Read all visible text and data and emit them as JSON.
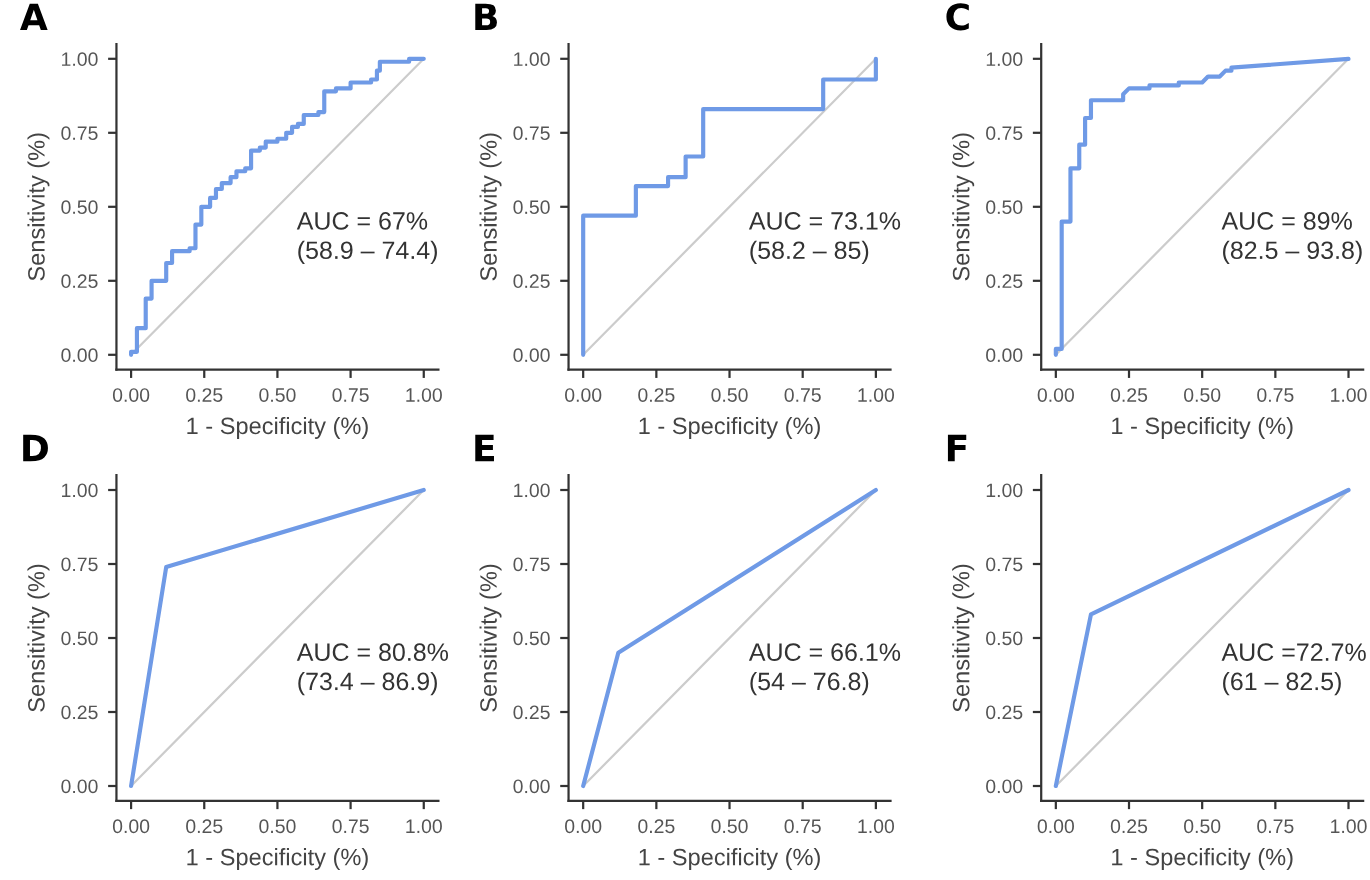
{
  "chart_data": [
    {
      "type": "line",
      "title": "A",
      "xlabel": "1 - Specificity (%)",
      "ylabel": "Sensitivity (%)",
      "xlim": [
        -0.05,
        1.05
      ],
      "ylim": [
        -0.05,
        1.05
      ],
      "xticks": [
        {
          "value": 0,
          "label": "0.00"
        },
        {
          "value": 0.25,
          "label": "0.25"
        },
        {
          "value": 0.5,
          "label": "0.50"
        },
        {
          "value": 0.75,
          "label": "0.75"
        },
        {
          "value": 1,
          "label": "1.00"
        }
      ],
      "yticks": [
        {
          "value": 0,
          "label": "0.00"
        },
        {
          "value": 0.25,
          "label": "0.25"
        },
        {
          "value": 0.5,
          "label": "0.50"
        },
        {
          "value": 0.75,
          "label": "0.75"
        },
        {
          "value": 1,
          "label": "1.00"
        }
      ],
      "annotations": [
        "AUC = 67%",
        "(58.9 – 74.4)"
      ],
      "series": [
        {
          "color": "#cccccc",
          "x": [
            0,
            1
          ],
          "values": [
            0,
            1
          ]
        },
        {
          "color": "#6f9ae6",
          "x": [
            0,
            0,
            0.02,
            0.02,
            0.05,
            0.05,
            0.07,
            0.07,
            0.12,
            0.12,
            0.14,
            0.14,
            0.2,
            0.2,
            0.22,
            0.22,
            0.24,
            0.24,
            0.27,
            0.27,
            0.29,
            0.29,
            0.31,
            0.31,
            0.34,
            0.34,
            0.36,
            0.36,
            0.39,
            0.39,
            0.41,
            0.41,
            0.44,
            0.44,
            0.46,
            0.46,
            0.5,
            0.5,
            0.53,
            0.53,
            0.55,
            0.55,
            0.57,
            0.57,
            0.59,
            0.59,
            0.64,
            0.64,
            0.66,
            0.66,
            0.7,
            0.7,
            0.75,
            0.75,
            0.82,
            0.82,
            0.84,
            0.84,
            0.85,
            0.85,
            0.95,
            0.95,
            1
          ],
          "values": [
            0,
            0.01,
            0.01,
            0.09,
            0.09,
            0.19,
            0.19,
            0.25,
            0.25,
            0.31,
            0.31,
            0.35,
            0.35,
            0.36,
            0.36,
            0.44,
            0.44,
            0.5,
            0.5,
            0.53,
            0.53,
            0.56,
            0.56,
            0.58,
            0.58,
            0.6,
            0.6,
            0.62,
            0.62,
            0.63,
            0.63,
            0.69,
            0.69,
            0.7,
            0.7,
            0.72,
            0.72,
            0.73,
            0.73,
            0.75,
            0.75,
            0.77,
            0.77,
            0.78,
            0.78,
            0.81,
            0.81,
            0.82,
            0.82,
            0.89,
            0.89,
            0.9,
            0.9,
            0.92,
            0.92,
            0.93,
            0.93,
            0.96,
            0.96,
            0.99,
            0.99,
            1,
            1
          ]
        }
      ]
    },
    {
      "type": "line",
      "title": "B",
      "xlabel": "1 - Specificity (%)",
      "ylabel": "Sensitivity (%)",
      "xlim": [
        -0.05,
        1.05
      ],
      "ylim": [
        -0.05,
        1.05
      ],
      "xticks": [
        {
          "value": 0,
          "label": "0.00"
        },
        {
          "value": 0.25,
          "label": "0.25"
        },
        {
          "value": 0.5,
          "label": "0.50"
        },
        {
          "value": 0.75,
          "label": "0.75"
        },
        {
          "value": 1,
          "label": "1.00"
        }
      ],
      "yticks": [
        {
          "value": 0,
          "label": "0.00"
        },
        {
          "value": 0.25,
          "label": "0.25"
        },
        {
          "value": 0.5,
          "label": "0.50"
        },
        {
          "value": 0.75,
          "label": "0.75"
        },
        {
          "value": 1,
          "label": "1.00"
        }
      ],
      "annotations": [
        "AUC = 73.1%",
        "(58.2 – 85)"
      ],
      "series": [
        {
          "color": "#cccccc",
          "x": [
            0,
            1
          ],
          "values": [
            0,
            1
          ]
        },
        {
          "color": "#6f9ae6",
          "x": [
            0,
            0,
            0.18,
            0.18,
            0.29,
            0.29,
            0.35,
            0.35,
            0.41,
            0.41,
            0.82,
            0.82,
            1,
            1
          ],
          "values": [
            0,
            0.47,
            0.47,
            0.57,
            0.57,
            0.6,
            0.6,
            0.67,
            0.67,
            0.83,
            0.83,
            0.93,
            0.93,
            1
          ]
        }
      ]
    },
    {
      "type": "line",
      "title": "C",
      "xlabel": "1 - Specificity (%)",
      "ylabel": "Sensitivity (%)",
      "xlim": [
        -0.05,
        1.05
      ],
      "ylim": [
        -0.05,
        1.05
      ],
      "xticks": [
        {
          "value": 0,
          "label": "0.00"
        },
        {
          "value": 0.25,
          "label": "0.25"
        },
        {
          "value": 0.5,
          "label": "0.50"
        },
        {
          "value": 0.75,
          "label": "0.75"
        },
        {
          "value": 1,
          "label": "1.00"
        }
      ],
      "yticks": [
        {
          "value": 0,
          "label": "0.00"
        },
        {
          "value": 0.25,
          "label": "0.25"
        },
        {
          "value": 0.5,
          "label": "0.50"
        },
        {
          "value": 0.75,
          "label": "0.75"
        },
        {
          "value": 1,
          "label": "1.00"
        }
      ],
      "annotations": [
        "AUC = 89%",
        "(82.5 – 93.8)"
      ],
      "series": [
        {
          "color": "#cccccc",
          "x": [
            0,
            1
          ],
          "values": [
            0,
            1
          ]
        },
        {
          "color": "#6f9ae6",
          "x": [
            0,
            0,
            0.02,
            0.02,
            0.05,
            0.05,
            0.08,
            0.08,
            0.1,
            0.1,
            0.12,
            0.12,
            0.23,
            0.23,
            0.25,
            0.32,
            0.32,
            0.42,
            0.42,
            0.5,
            0.52,
            0.56,
            0.58,
            0.6,
            0.6,
            1
          ],
          "values": [
            0,
            0.02,
            0.02,
            0.45,
            0.45,
            0.63,
            0.63,
            0.71,
            0.71,
            0.8,
            0.8,
            0.86,
            0.86,
            0.88,
            0.9,
            0.9,
            0.91,
            0.91,
            0.92,
            0.92,
            0.94,
            0.94,
            0.96,
            0.96,
            0.97,
            1
          ]
        }
      ]
    },
    {
      "type": "line",
      "title": "D",
      "xlabel": "1 - Specificity (%)",
      "ylabel": "Sensitivity (%)",
      "xlim": [
        -0.05,
        1.05
      ],
      "ylim": [
        -0.05,
        1.05
      ],
      "xticks": [
        {
          "value": 0,
          "label": "0.00"
        },
        {
          "value": 0.25,
          "label": "0.25"
        },
        {
          "value": 0.5,
          "label": "0.50"
        },
        {
          "value": 0.75,
          "label": "0.75"
        },
        {
          "value": 1,
          "label": "1.00"
        }
      ],
      "yticks": [
        {
          "value": 0,
          "label": "0.00"
        },
        {
          "value": 0.25,
          "label": "0.25"
        },
        {
          "value": 0.5,
          "label": "0.50"
        },
        {
          "value": 0.75,
          "label": "0.75"
        },
        {
          "value": 1,
          "label": "1.00"
        }
      ],
      "annotations": [
        "AUC = 80.8%",
        "(73.4 – 86.9)"
      ],
      "series": [
        {
          "color": "#cccccc",
          "x": [
            0,
            1
          ],
          "values": [
            0,
            1
          ]
        },
        {
          "color": "#6f9ae6",
          "x": [
            0,
            0.12,
            1
          ],
          "values": [
            0,
            0.74,
            1
          ]
        }
      ]
    },
    {
      "type": "line",
      "title": "E",
      "xlabel": "1 - Specificity (%)",
      "ylabel": "Sensitivity (%)",
      "xlim": [
        -0.05,
        1.05
      ],
      "ylim": [
        -0.05,
        1.05
      ],
      "xticks": [
        {
          "value": 0,
          "label": "0.00"
        },
        {
          "value": 0.25,
          "label": "0.25"
        },
        {
          "value": 0.5,
          "label": "0.50"
        },
        {
          "value": 0.75,
          "label": "0.75"
        },
        {
          "value": 1,
          "label": "1.00"
        }
      ],
      "yticks": [
        {
          "value": 0,
          "label": "0.00"
        },
        {
          "value": 0.25,
          "label": "0.25"
        },
        {
          "value": 0.5,
          "label": "0.50"
        },
        {
          "value": 0.75,
          "label": "0.75"
        },
        {
          "value": 1,
          "label": "1.00"
        }
      ],
      "annotations": [
        "AUC = 66.1%",
        "(54 – 76.8)"
      ],
      "series": [
        {
          "color": "#cccccc",
          "x": [
            0,
            1
          ],
          "values": [
            0,
            1
          ]
        },
        {
          "color": "#6f9ae6",
          "x": [
            0,
            0.12,
            1
          ],
          "values": [
            0,
            0.45,
            1
          ]
        }
      ]
    },
    {
      "type": "line",
      "title": "F",
      "xlabel": "1 - Specificity (%)",
      "ylabel": "Sensitivity (%)",
      "xlim": [
        -0.05,
        1.05
      ],
      "ylim": [
        -0.05,
        1.05
      ],
      "xticks": [
        {
          "value": 0,
          "label": "0.00"
        },
        {
          "value": 0.25,
          "label": "0.25"
        },
        {
          "value": 0.5,
          "label": "0.50"
        },
        {
          "value": 0.75,
          "label": "0.75"
        },
        {
          "value": 1,
          "label": "1.00"
        }
      ],
      "yticks": [
        {
          "value": 0,
          "label": "0.00"
        },
        {
          "value": 0.25,
          "label": "0.25"
        },
        {
          "value": 0.5,
          "label": "0.50"
        },
        {
          "value": 0.75,
          "label": "0.75"
        },
        {
          "value": 1,
          "label": "1.00"
        }
      ],
      "annotations": [
        "AUC =72.7%",
        "(61 – 82.5)"
      ],
      "series": [
        {
          "color": "#cccccc",
          "x": [
            0,
            1
          ],
          "values": [
            0,
            1
          ]
        },
        {
          "color": "#6f9ae6",
          "x": [
            0,
            0.12,
            1
          ],
          "values": [
            0,
            0.58,
            1
          ]
        }
      ]
    }
  ]
}
